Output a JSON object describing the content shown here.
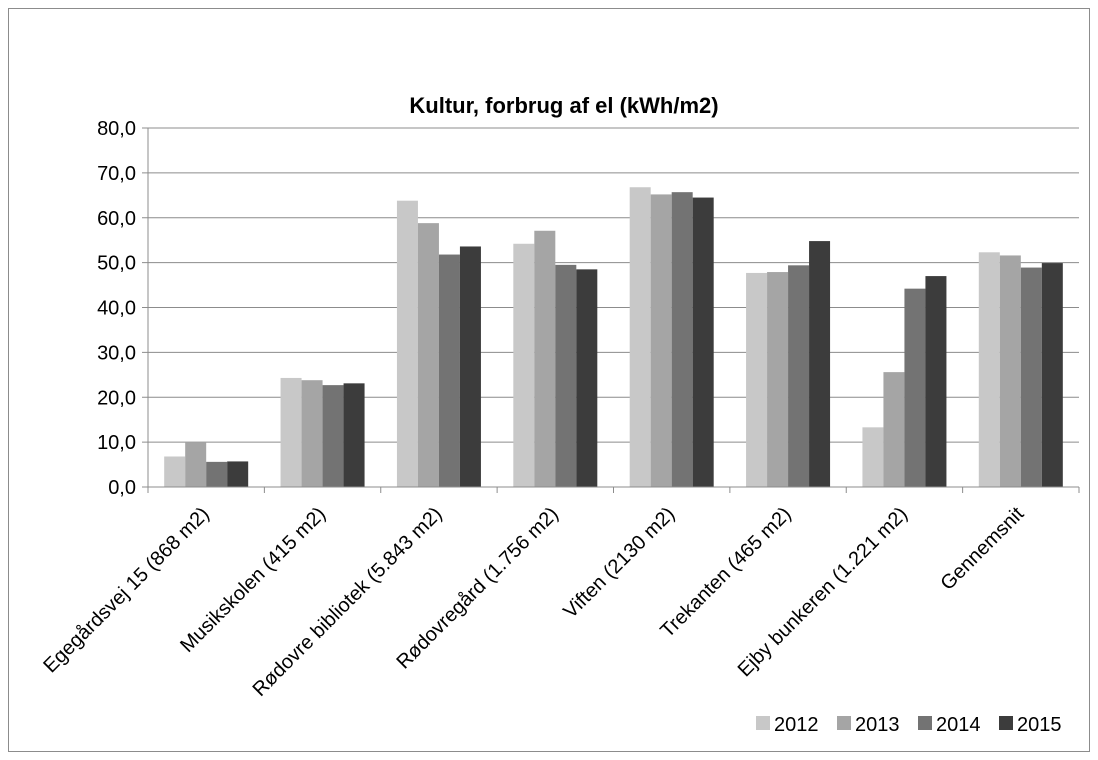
{
  "chart_data": {
    "type": "bar",
    "title": "Kultur, forbrug af el (kWh/m2)",
    "xlabel": "",
    "ylabel": "",
    "ylim": [
      0,
      80
    ],
    "yticks": [
      "0,0",
      "10,0",
      "20,0",
      "30,0",
      "40,0",
      "50,0",
      "60,0",
      "70,0",
      "80,0"
    ],
    "grid": true,
    "legend_position": "bottom-right",
    "categories": [
      "Egegårdsvej 15 (868 m2)",
      "Musikskolen (415 m2)",
      "Rødovre bibliotek (5.843 m2)",
      "Rødovregård (1.756 m2)",
      "Viften (2130 m2)",
      "Trekanten (465 m2)",
      "Ejby bunkeren (1.221 m2)",
      "Gennemsnit"
    ],
    "series": [
      {
        "name": "2012",
        "color": "#c8c8c8",
        "values": [
          6.8,
          24.3,
          63.8,
          54.2,
          66.8,
          47.7,
          13.3,
          52.3
        ]
      },
      {
        "name": "2013",
        "color": "#a5a5a5",
        "values": [
          10.0,
          23.8,
          58.8,
          57.1,
          65.2,
          47.9,
          25.6,
          51.6
        ]
      },
      {
        "name": "2014",
        "color": "#737373",
        "values": [
          5.6,
          22.7,
          51.8,
          49.5,
          65.7,
          49.4,
          44.2,
          48.9
        ]
      },
      {
        "name": "2015",
        "color": "#3c3c3c",
        "values": [
          5.7,
          23.1,
          53.6,
          48.5,
          64.5,
          54.8,
          47.0,
          49.9
        ]
      }
    ]
  }
}
